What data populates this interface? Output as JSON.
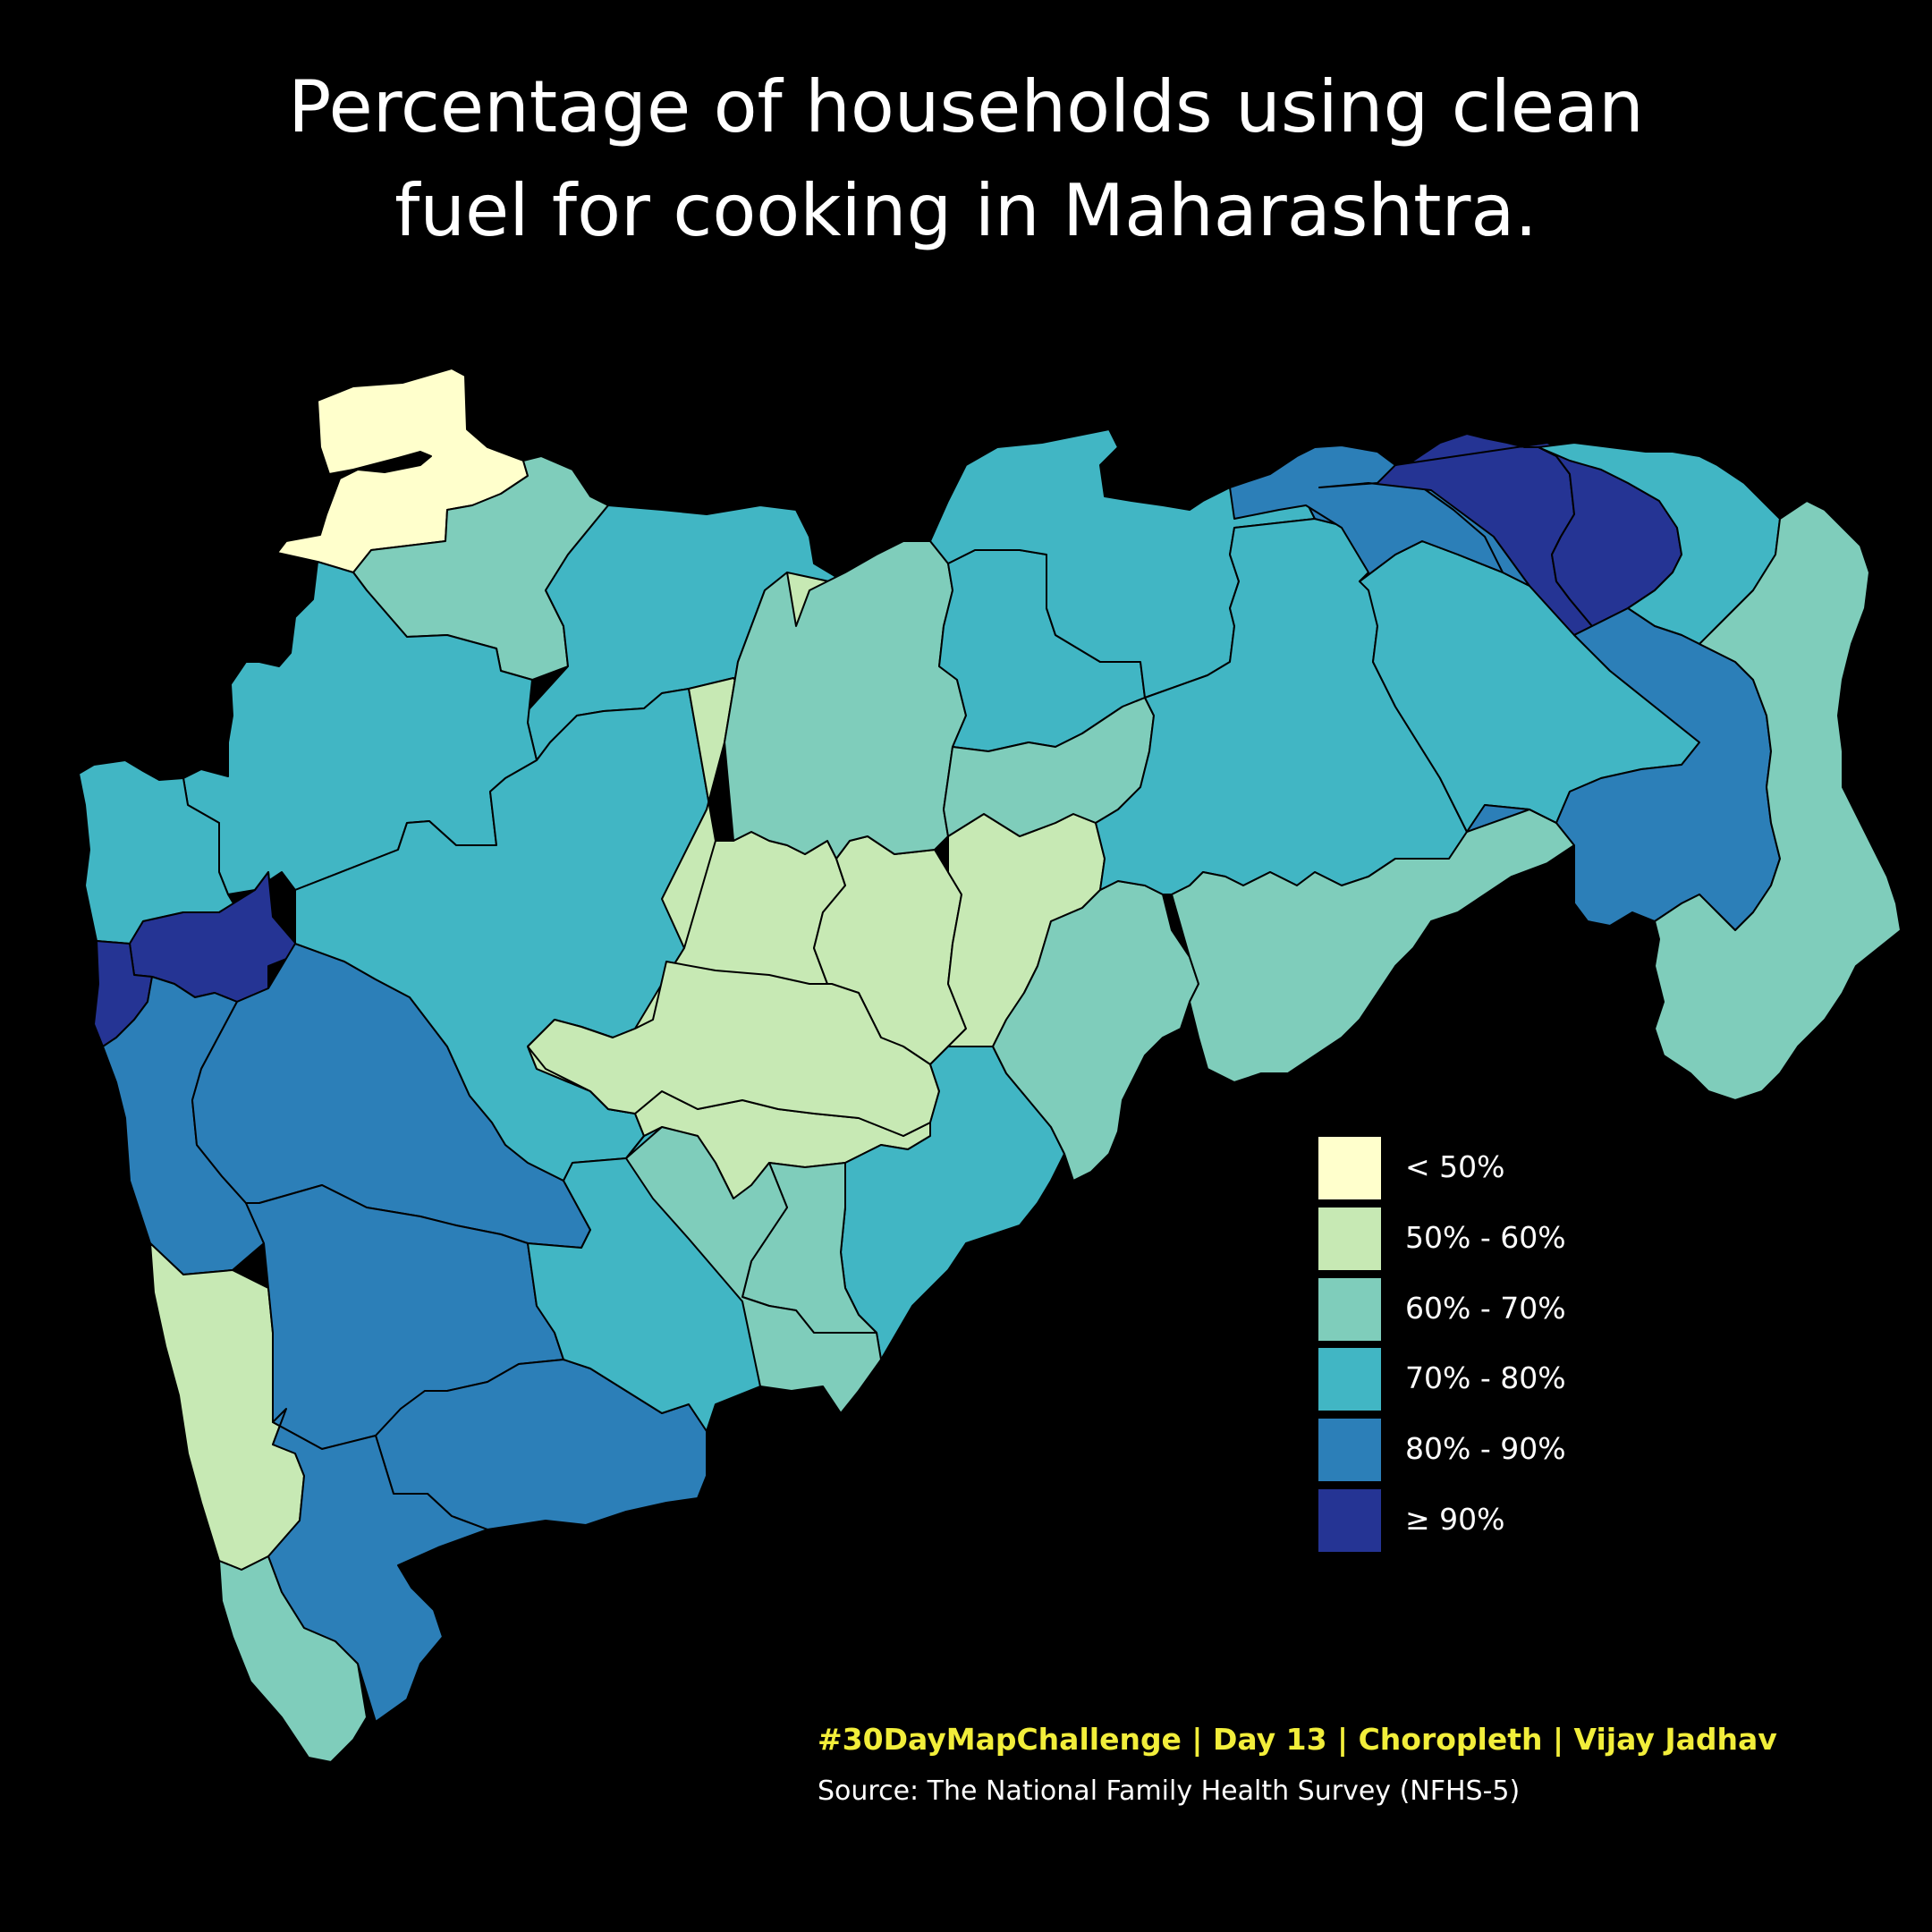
{
  "title": {
    "line1": "Percentage of households using clean",
    "line2": "fuel for cooking in Maharashtra."
  },
  "legend": {
    "items": [
      {
        "label": "< 50%",
        "color": "#ffffcc"
      },
      {
        "label": "50% - 60%",
        "color": "#c7e9b4"
      },
      {
        "label": "60% - 70%",
        "color": "#7fcdbb"
      },
      {
        "label": "70% - 80%",
        "color": "#41b6c4"
      },
      {
        "label": "80% - 90%",
        "color": "#2c7fb8"
      },
      {
        "label": "≥ 90%",
        "color": "#253494"
      }
    ]
  },
  "credit": "#30DayMapChallenge | Day 13 | Choropleth | Vijay Jadhav",
  "source": "Source: The National Family Health Survey (NFHS-5)"
}
